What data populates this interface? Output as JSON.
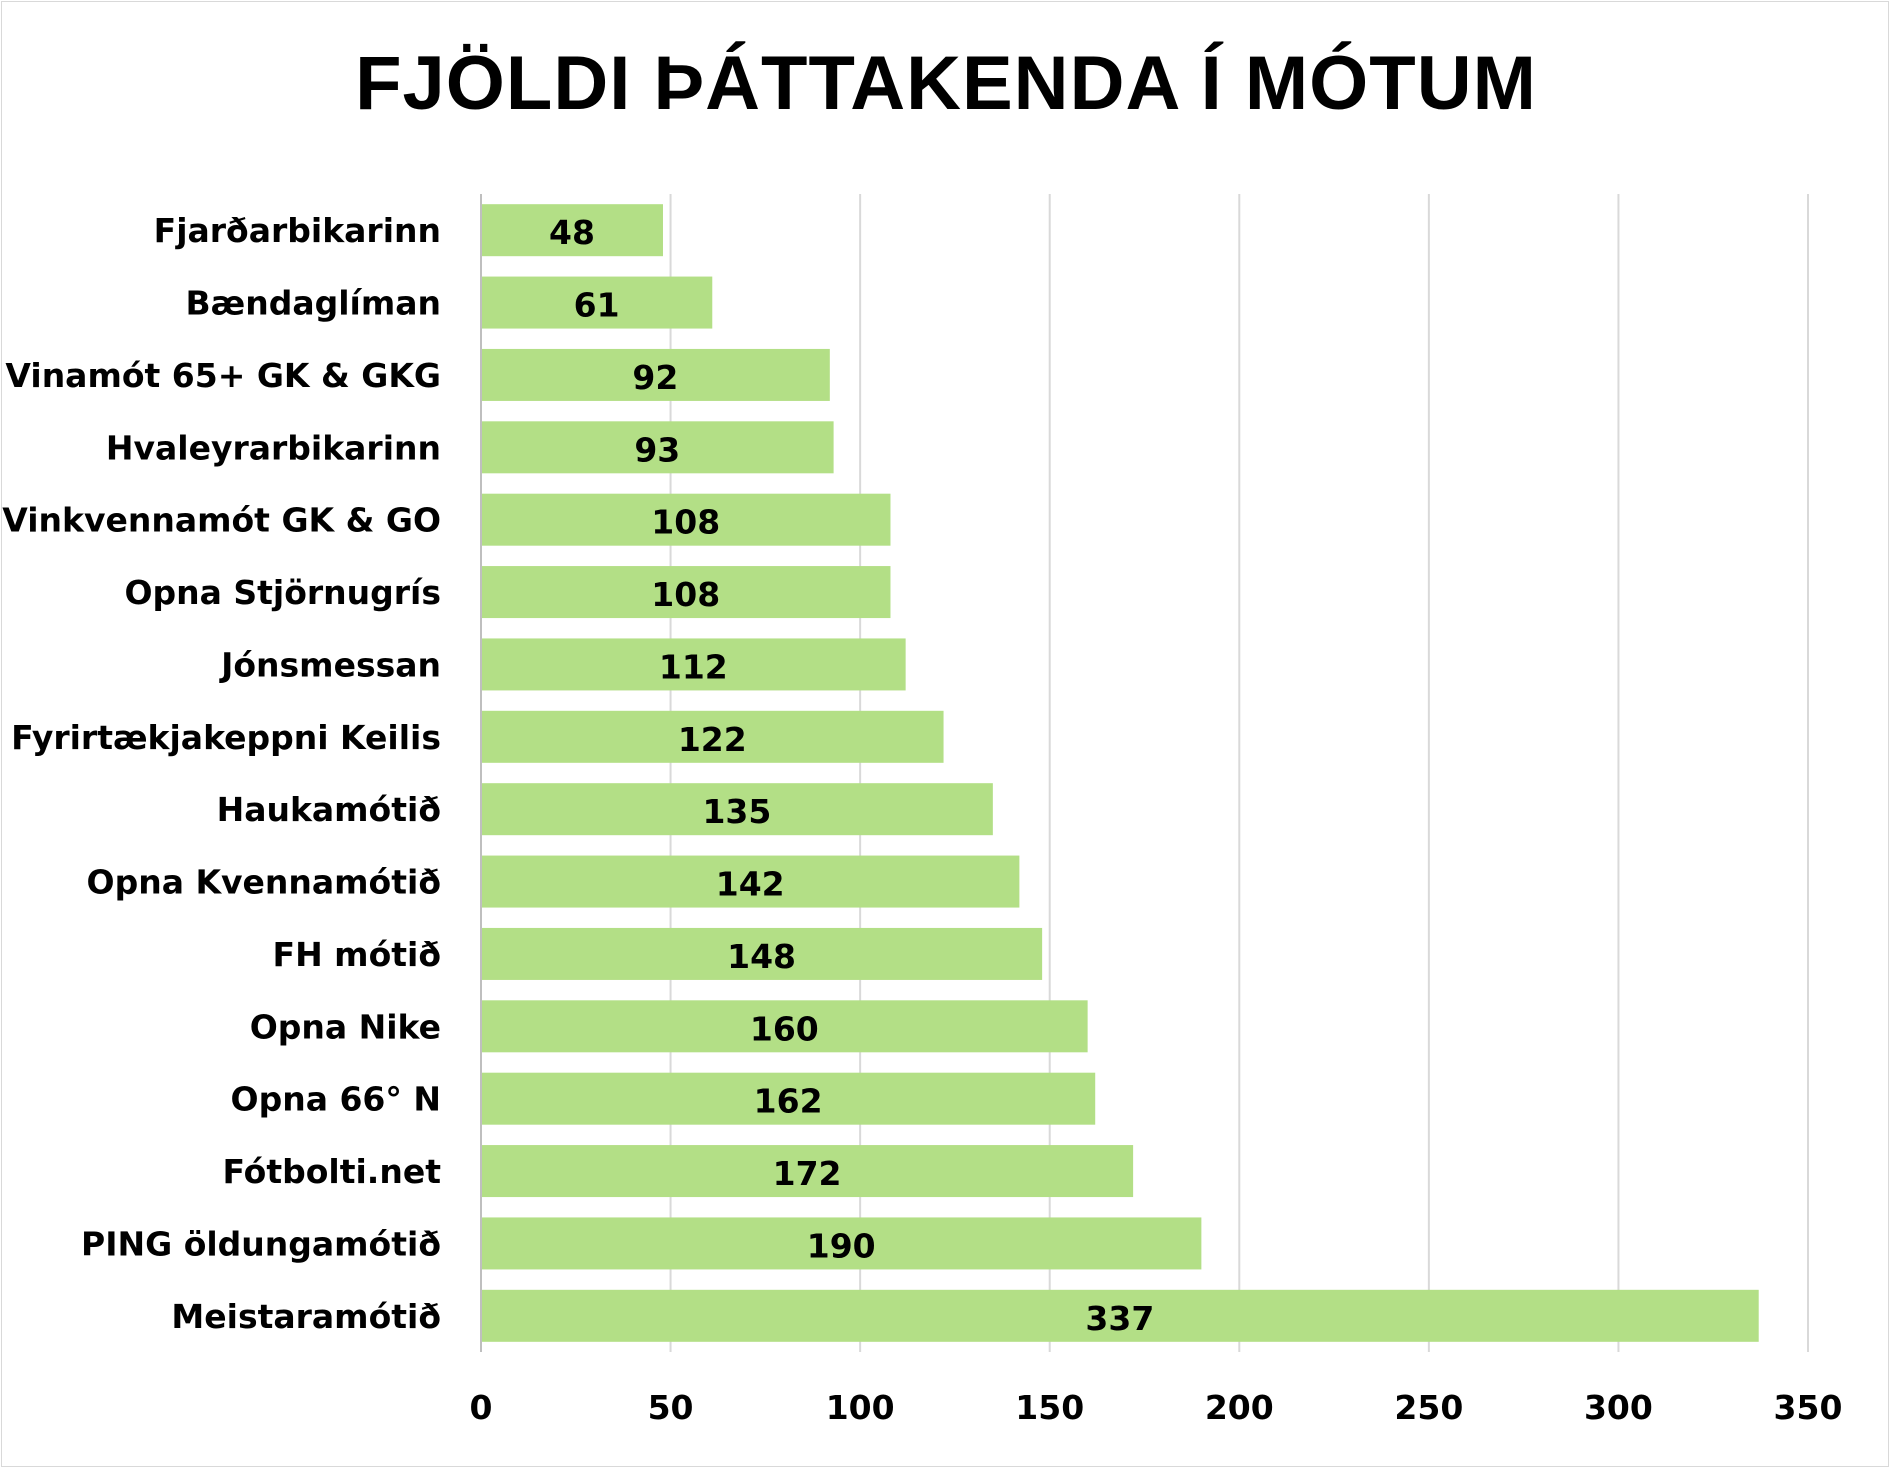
{
  "chart_data": {
    "type": "bar",
    "orientation": "horizontal",
    "title": "FJÖLDI ÞÁTTAKENDA Í MÓTUM",
    "xlabel": "",
    "ylabel": "",
    "categories": [
      "Fjarðarbikarinn",
      "Bændaglíman",
      "Vinamót 65+ GK & GKG",
      "Hvaleyrarbikarinn",
      "Vinkvennamót GK & GO",
      "Opna Stjörnugrís",
      "Jónsmessan",
      "Fyrirtækjakeppni Keilis",
      "Haukamótið",
      "Opna Kvennamótið",
      "FH mótið",
      "Opna Nike",
      "Opna 66° N",
      "Fótbolti.net",
      "PING öldungamótið",
      "Meistaramótið"
    ],
    "values": [
      48,
      61,
      92,
      93,
      108,
      108,
      112,
      122,
      135,
      142,
      148,
      160,
      162,
      172,
      190,
      337
    ],
    "xlim": [
      0,
      350
    ],
    "xticks": [
      "0",
      "50",
      "100",
      "150",
      "200",
      "250",
      "300",
      "350"
    ],
    "grid": true,
    "legend": "none",
    "bar_color": "#b3df86",
    "grid_color": "#d9d9d9"
  }
}
